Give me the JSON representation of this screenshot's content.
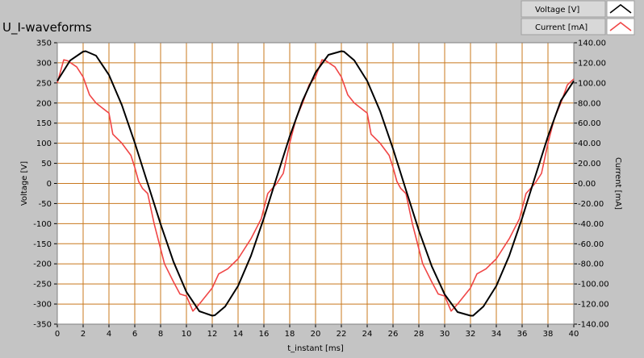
{
  "chart_data": {
    "type": "line",
    "title": "U_I-waveforms",
    "xlabel": "t_instant [ms]",
    "ylabel_left": "Voltage [V]",
    "ylabel_right": "Current [mA]",
    "xlim": [
      0,
      40
    ],
    "ylim_left": [
      -350,
      350
    ],
    "ylim_right": [
      -140,
      140
    ],
    "x_ticks": [
      0,
      2,
      4,
      6,
      8,
      10,
      12,
      14,
      16,
      18,
      20,
      22,
      24,
      26,
      28,
      30,
      32,
      34,
      36,
      38,
      40
    ],
    "y_left_ticks": [
      350,
      300,
      250,
      200,
      150,
      100,
      50,
      0,
      -50,
      -100,
      -150,
      -200,
      -250,
      -300,
      -350
    ],
    "y_right_ticks": [
      "140.00",
      "120.00",
      "100.00",
      "80.00",
      "60.00",
      "40.00",
      "20.00",
      "0.00",
      "-20.00",
      "-40.00",
      "-60.00",
      "-80.00",
      "-100.00",
      "-120.00",
      "-140.00"
    ],
    "grid": true,
    "legend_position": "top-right",
    "colors": {
      "background": "#c4c4c4",
      "plot_area": "#ffffff",
      "grid": "#c8781e",
      "voltage": "#000000",
      "current": "#f04646",
      "legend_bg": "#d8d8d8"
    },
    "series": [
      {
        "name": "Voltage [V]",
        "axis": "left",
        "color": "#000000",
        "x": [
          0,
          1,
          2,
          2.2,
          3,
          4,
          5,
          6,
          7,
          8,
          9,
          10,
          11,
          12,
          12.2,
          13,
          14,
          15,
          16,
          17,
          18,
          19,
          20,
          21,
          22,
          22.2,
          23,
          24,
          25,
          26,
          27,
          28,
          29,
          30,
          31,
          32,
          32.2,
          33,
          34,
          35,
          36,
          37,
          38,
          39,
          40
        ],
        "values": [
          255,
          306,
          328,
          329,
          318,
          270,
          195,
          101,
          0,
          -101,
          -195,
          -270,
          -318,
          -329,
          -328,
          -306,
          -255,
          -180,
          -86,
          16,
          117,
          206,
          276,
          320,
          329,
          328,
          306,
          255,
          180,
          86,
          -16,
          -117,
          -206,
          -276,
          -320,
          -329,
          -329,
          -306,
          -255,
          -180,
          -86,
          16,
          117,
          206,
          255
        ]
      },
      {
        "name": "Current [mA]",
        "axis": "right",
        "color": "#f04646",
        "x": [
          0,
          0.5,
          0.8,
          1.5,
          2,
          2.5,
          3,
          4,
          4.3,
          5,
          5.7,
          6,
          6.3,
          6.6,
          7,
          7.5,
          8,
          8.3,
          9,
          9.5,
          10,
          10.5,
          11,
          11.5,
          12,
          12.5,
          13.2,
          14,
          15,
          15.8,
          16.3,
          17,
          17.5,
          18,
          18.5,
          19,
          19.5,
          20,
          20.5,
          20.8,
          21.5,
          22,
          22.5,
          23,
          24,
          24.3,
          25,
          25.7,
          26,
          26.3,
          26.6,
          27,
          27.5,
          28,
          28.3,
          29,
          29.5,
          30,
          30.5,
          31,
          31.5,
          32,
          32.5,
          33.2,
          34,
          35,
          35.8,
          36.3,
          37,
          37.5,
          38,
          38.5,
          39,
          39.5,
          40
        ],
        "values": [
          100,
          123,
          122,
          116,
          106,
          88,
          80,
          70,
          49,
          40,
          28,
          16,
          2,
          -5,
          -10,
          -40,
          -65,
          -80,
          -98,
          -110,
          -112,
          -127,
          -120,
          -112,
          -104,
          -90,
          -85,
          -75,
          -55,
          -35,
          -10,
          0,
          10,
          40,
          65,
          80,
          98,
          106,
          123,
          122,
          116,
          106,
          88,
          80,
          70,
          49,
          40,
          28,
          16,
          2,
          -5,
          -10,
          -40,
          -65,
          -80,
          -98,
          -110,
          -112,
          -127,
          -120,
          -112,
          -104,
          -90,
          -85,
          -75,
          -55,
          -35,
          -10,
          0,
          10,
          40,
          65,
          80,
          98,
          104
        ]
      }
    ]
  }
}
